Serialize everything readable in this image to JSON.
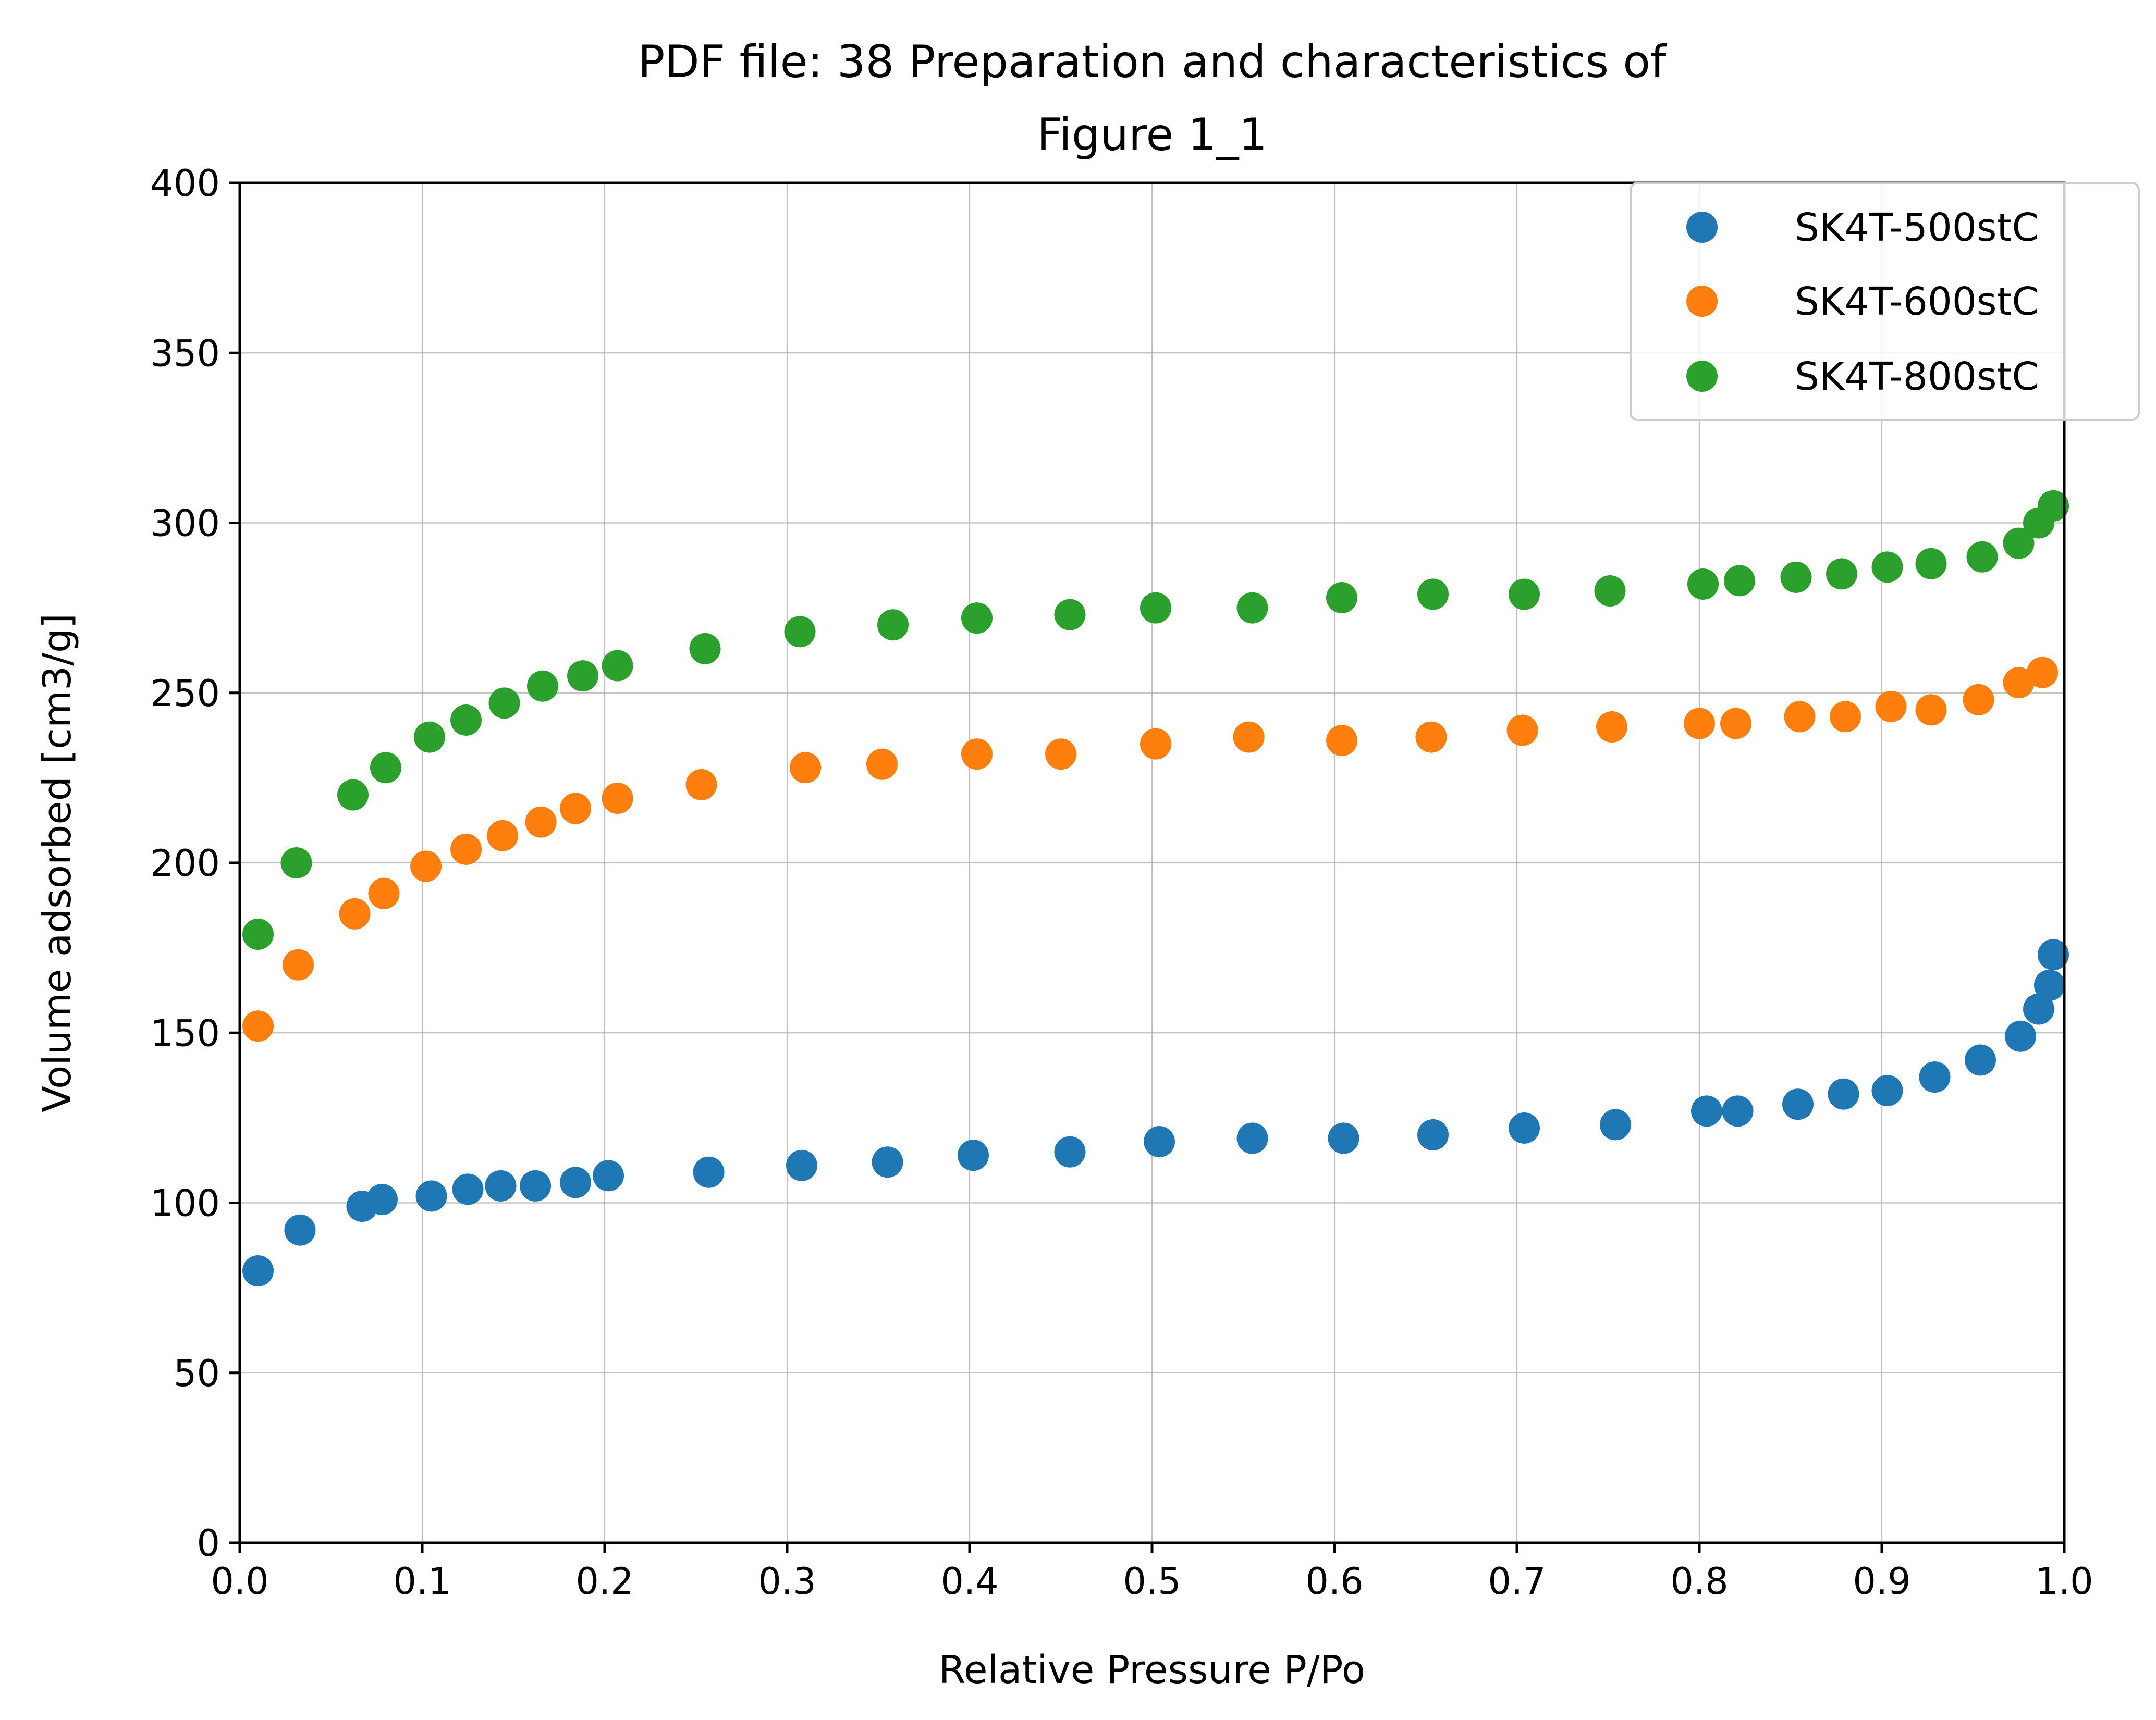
{
  "chart_data": {
    "type": "scatter",
    "title": [
      "PDF file: 38 Preparation and characteristics of",
      "Figure 1_1"
    ],
    "xlabel": "Relative Pressure P/Po",
    "ylabel": "Volume adsorbed [cm3/g]",
    "xlim": [
      0.0,
      1.0
    ],
    "ylim": [
      0,
      400
    ],
    "xticks": [
      "0.0",
      "0.1",
      "0.2",
      "0.3",
      "0.4",
      "0.5",
      "0.6",
      "0.7",
      "0.8",
      "0.9",
      "1.0"
    ],
    "yticks": [
      "0",
      "50",
      "100",
      "150",
      "200",
      "250",
      "300",
      "350",
      "400"
    ],
    "grid": true,
    "legend_position": "top-right",
    "series": [
      {
        "name": "SK4T-500stC",
        "color": "#1f77b4",
        "x": [
          0.01,
          0.033,
          0.067,
          0.078,
          0.105,
          0.125,
          0.143,
          0.162,
          0.184,
          0.202,
          0.257,
          0.308,
          0.355,
          0.402,
          0.455,
          0.504,
          0.555,
          0.605,
          0.654,
          0.704,
          0.754,
          0.804,
          0.821,
          0.854,
          0.879,
          0.903,
          0.929,
          0.954,
          0.976,
          0.986,
          0.992,
          0.994
        ],
        "y": [
          80,
          92,
          99,
          101,
          102,
          104,
          105,
          105,
          106,
          108,
          109,
          111,
          112,
          114,
          115,
          118,
          119,
          119,
          120,
          122,
          123,
          127,
          127,
          129,
          132,
          133,
          137,
          142,
          149,
          157,
          164,
          173
        ]
      },
      {
        "name": "SK4T-600stC",
        "color": "#ff7f0e",
        "x": [
          0.01,
          0.032,
          0.063,
          0.079,
          0.102,
          0.124,
          0.144,
          0.165,
          0.184,
          0.207,
          0.253,
          0.31,
          0.352,
          0.404,
          0.45,
          0.502,
          0.553,
          0.604,
          0.653,
          0.703,
          0.752,
          0.8,
          0.82,
          0.855,
          0.88,
          0.905,
          0.927,
          0.953,
          0.975,
          0.988
        ],
        "y": [
          152,
          170,
          185,
          191,
          199,
          204,
          208,
          212,
          216,
          219,
          223,
          228,
          229,
          232,
          232,
          235,
          237,
          236,
          237,
          239,
          240,
          241,
          241,
          243,
          243,
          246,
          245,
          248,
          253,
          256
        ]
      },
      {
        "name": "SK4T-800stC",
        "color": "#2ca02c",
        "x": [
          0.01,
          0.031,
          0.062,
          0.08,
          0.104,
          0.124,
          0.145,
          0.166,
          0.188,
          0.207,
          0.255,
          0.307,
          0.358,
          0.404,
          0.455,
          0.502,
          0.555,
          0.604,
          0.654,
          0.704,
          0.751,
          0.802,
          0.822,
          0.853,
          0.878,
          0.903,
          0.927,
          0.955,
          0.975,
          0.986,
          0.994
        ],
        "y": [
          179,
          200,
          220,
          228,
          237,
          242,
          247,
          252,
          255,
          258,
          263,
          268,
          270,
          272,
          273,
          275,
          275,
          278,
          279,
          279,
          280,
          282,
          283,
          284,
          285,
          287,
          288,
          290,
          294,
          300,
          305
        ]
      }
    ]
  }
}
